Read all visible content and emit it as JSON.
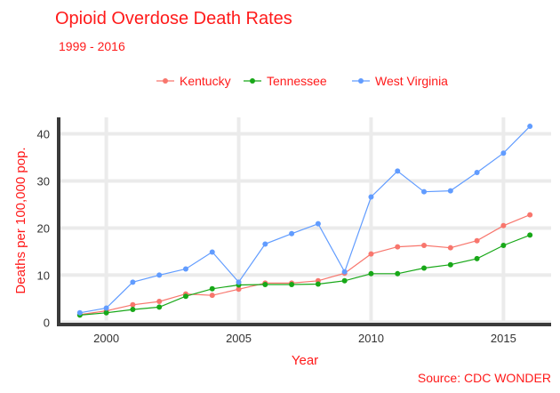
{
  "chart_data": {
    "type": "line",
    "title": "Opioid Overdose Death Rates",
    "subtitle": "1999 - 2016",
    "xlabel": "Year",
    "ylabel": "Deaths per 100,000 pop.",
    "caption": "Source: CDC WONDER",
    "xlim": [
      1998.2,
      2016.8
    ],
    "ylim": [
      -0.5,
      43.5
    ],
    "x_ticks": [
      2000,
      2005,
      2010,
      2015
    ],
    "y_ticks": [
      0,
      10,
      20,
      30,
      40
    ],
    "grid": true,
    "legend_position": "top",
    "x": [
      1999,
      2000,
      2001,
      2002,
      2003,
      2004,
      2005,
      2006,
      2007,
      2008,
      2009,
      2010,
      2011,
      2012,
      2013,
      2014,
      2015,
      2016
    ],
    "series": [
      {
        "name": "Kentucky",
        "color": "#f8766d",
        "values": [
          1.6,
          2.4,
          3.7,
          4.4,
          6.0,
          5.7,
          7.0,
          8.3,
          8.3,
          8.8,
          10.4,
          14.5,
          16.0,
          16.3,
          15.8,
          17.3,
          20.5,
          22.8
        ]
      },
      {
        "name": "Tennessee",
        "color": "#18a818",
        "values": [
          1.5,
          2.0,
          2.7,
          3.2,
          5.5,
          7.1,
          7.9,
          8.0,
          8.0,
          8.1,
          8.8,
          10.3,
          10.3,
          11.5,
          12.2,
          13.5,
          16.3,
          18.5
        ]
      },
      {
        "name": "West Virginia",
        "color": "#619cff",
        "values": [
          2.0,
          3.0,
          8.5,
          10.0,
          11.3,
          14.9,
          8.5,
          16.6,
          18.8,
          20.9,
          10.7,
          26.6,
          32.1,
          27.7,
          27.9,
          31.8,
          35.9,
          41.6
        ]
      }
    ]
  }
}
